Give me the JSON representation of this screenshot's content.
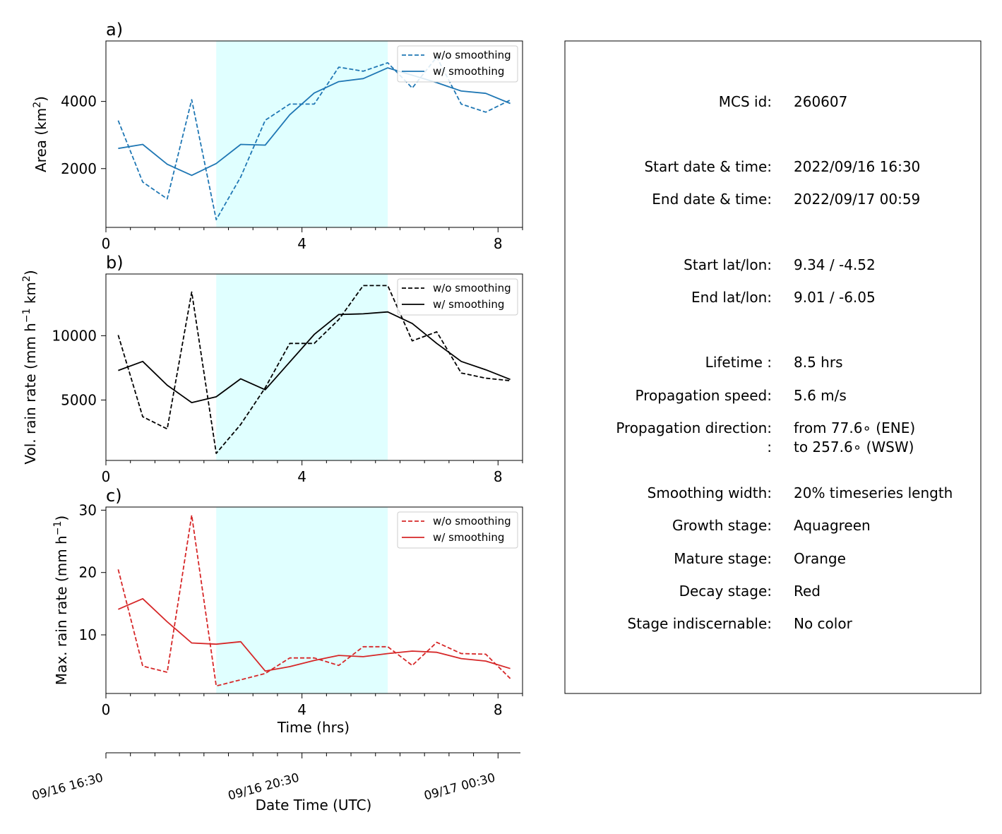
{
  "chart_data": [
    {
      "type": "line",
      "panel_label": "a)",
      "ylabel": "Area  (km²)",
      "ylabel_main": "Area  (km",
      "ylabel_sup": "2",
      "ylabel_tail": ")",
      "xlim": [
        0,
        8.5
      ],
      "ylim": [
        250,
        5800
      ],
      "xticks": [
        "0",
        "4",
        "8"
      ],
      "yticks": [
        2000,
        4000
      ],
      "shaded_span_hrs": [
        2.25,
        5.75
      ],
      "color": "#1f77b4",
      "x": [
        0.25,
        0.75,
        1.25,
        1.75,
        2.25,
        2.75,
        3.25,
        3.75,
        4.25,
        4.75,
        5.25,
        5.75,
        6.25,
        6.75,
        7.25,
        7.75,
        8.25
      ],
      "series": [
        {
          "name": "w/o smoothing",
          "dashed": true,
          "values": [
            3430,
            1600,
            1100,
            4050,
            480,
            1750,
            3440,
            3920,
            3920,
            5020,
            4900,
            5150,
            4400,
            5320,
            3920,
            3680,
            4040
          ]
        },
        {
          "name": "w/ smoothing",
          "dashed": false,
          "values": [
            2600,
            2720,
            2130,
            1800,
            2150,
            2720,
            2700,
            3600,
            4250,
            4590,
            4680,
            5000,
            4780,
            4560,
            4310,
            4240,
            3940
          ]
        }
      ]
    },
    {
      "type": "line",
      "panel_label": "b)",
      "ylabel": "Vol. rain rate (mm h⁻¹ km²)",
      "ylabel_main": "Vol. rain rate (mm h",
      "ylabel_sup": "−1",
      "ylabel_mid": " km",
      "ylabel_sup2": "2",
      "ylabel_tail": ")",
      "xlim": [
        0,
        8.5
      ],
      "ylim": [
        300,
        14800
      ],
      "xticks": [
        "0",
        "4",
        "8"
      ],
      "yticks": [
        5000,
        10000
      ],
      "shaded_span_hrs": [
        2.25,
        5.75
      ],
      "color": "#000000",
      "x": [
        0.25,
        0.75,
        1.25,
        1.75,
        2.25,
        2.75,
        3.25,
        3.75,
        4.25,
        4.75,
        5.25,
        5.75,
        6.25,
        6.75,
        7.25,
        7.75,
        8.25
      ],
      "series": [
        {
          "name": "w/o smoothing",
          "dashed": true,
          "values": [
            10050,
            3700,
            2750,
            13400,
            850,
            3100,
            5950,
            9400,
            9400,
            11250,
            13900,
            13900,
            9600,
            10300,
            7100,
            6700,
            6500
          ]
        },
        {
          "name": "w/ smoothing",
          "dashed": false,
          "values": [
            7300,
            8000,
            6150,
            4800,
            5250,
            6650,
            5800,
            7950,
            10100,
            11650,
            11700,
            11850,
            10950,
            9400,
            8000,
            7350,
            6600
          ]
        }
      ]
    },
    {
      "type": "line",
      "panel_label": "c)",
      "ylabel": "Max. rain rate  (mm h⁻¹)",
      "ylabel_main": "Max. rain rate  (mm h",
      "ylabel_sup": "−1",
      "ylabel_tail": ")",
      "xlim": [
        0,
        8.5
      ],
      "ylim": [
        0.6,
        30.5
      ],
      "xticks": [
        "0",
        "4",
        "8"
      ],
      "yticks": [
        10,
        20,
        30
      ],
      "xlabel": "Time (hrs)",
      "shaded_span_hrs": [
        2.25,
        5.75
      ],
      "color": "#d62728",
      "x": [
        0.25,
        0.75,
        1.25,
        1.75,
        2.25,
        2.75,
        3.25,
        3.75,
        4.25,
        4.75,
        5.25,
        5.75,
        6.25,
        6.75,
        7.25,
        7.75,
        8.25
      ],
      "series": [
        {
          "name": "w/o smoothing",
          "dashed": true,
          "values": [
            20.5,
            5.0,
            4.0,
            29.2,
            1.8,
            2.8,
            3.8,
            6.3,
            6.3,
            5.1,
            8.1,
            8.1,
            5.1,
            8.8,
            7.0,
            6.9,
            3.0
          ]
        },
        {
          "name": "w/ smoothing",
          "dashed": false,
          "values": [
            14.1,
            15.8,
            12.1,
            8.7,
            8.5,
            8.9,
            4.2,
            4.9,
            5.9,
            6.7,
            6.5,
            7.0,
            7.4,
            7.2,
            6.2,
            5.8,
            4.6
          ]
        }
      ]
    }
  ],
  "date_axis": {
    "label": "Date Time (UTC)",
    "xlim": [
      0,
      8.5
    ],
    "tick_labels": [
      {
        "hrs": 0,
        "text": "09/16 16:30"
      },
      {
        "hrs": 4,
        "text": "09/16 20:30"
      },
      {
        "hrs": 8,
        "text": "09/17 00:30"
      }
    ]
  },
  "info_panel": {
    "rows": [
      {
        "label": "MCS id:",
        "value": "260607"
      },
      {
        "label": "",
        "value": ""
      },
      {
        "label": "Start date & time:",
        "value": "2022/09/16 16:30"
      },
      {
        "label": "End date & time:",
        "value": "2022/09/17 00:59"
      },
      {
        "label": "",
        "value": ""
      },
      {
        "label": "Start lat/lon:",
        "value": "9.34 / -4.52"
      },
      {
        "label": "End lat/lon:",
        "value": "9.01 / -6.05"
      },
      {
        "label": "",
        "value": ""
      },
      {
        "label": "Lifetime :",
        "value": "8.5 hrs"
      },
      {
        "label": "Propagation speed:",
        "value": "5.6 m/s"
      },
      {
        "label": "Propagation direction:",
        "value": "from  77.6∘ (ENE)"
      },
      {
        "label": ":",
        "value": "to   257.6∘ (WSW)"
      },
      {
        "label": "Smoothing width:",
        "value": "20% timeseries length"
      },
      {
        "label": "Growth stage:",
        "value": "Aquagreen"
      },
      {
        "label": "Mature stage:",
        "value": "Orange"
      },
      {
        "label": "Decay stage:",
        "value": "Red"
      },
      {
        "label": "Stage indiscernable:",
        "value": "No color"
      }
    ]
  },
  "colors": {
    "shade": "#e0ffff",
    "panel_a": "#1f77b4",
    "panel_b": "#000000",
    "panel_c": "#d62728"
  }
}
